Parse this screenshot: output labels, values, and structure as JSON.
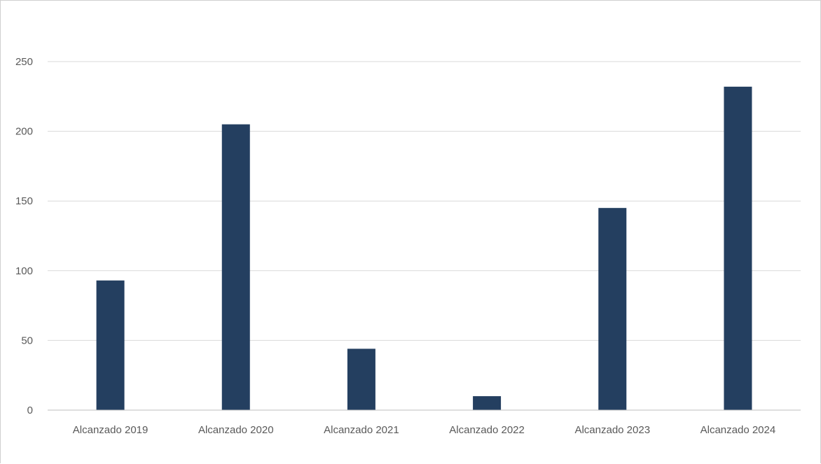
{
  "chart_data": {
    "type": "bar",
    "title": "",
    "xlabel": "",
    "ylabel": "",
    "categories": [
      "Alcanzado 2019",
      "Alcanzado 2020",
      "Alcanzado 2021",
      "Alcanzado 2022",
      "Alcanzado 2023",
      "Alcanzado 2024"
    ],
    "values": [
      93,
      205,
      44,
      10,
      145,
      232
    ],
    "ylim": [
      0,
      250
    ],
    "yticks": [
      0,
      50,
      100,
      150,
      200,
      250
    ],
    "grid": true,
    "legend": "none",
    "bar_color": "#243f60",
    "grid_color": "#d9d9d9",
    "label_color": "#595959"
  }
}
